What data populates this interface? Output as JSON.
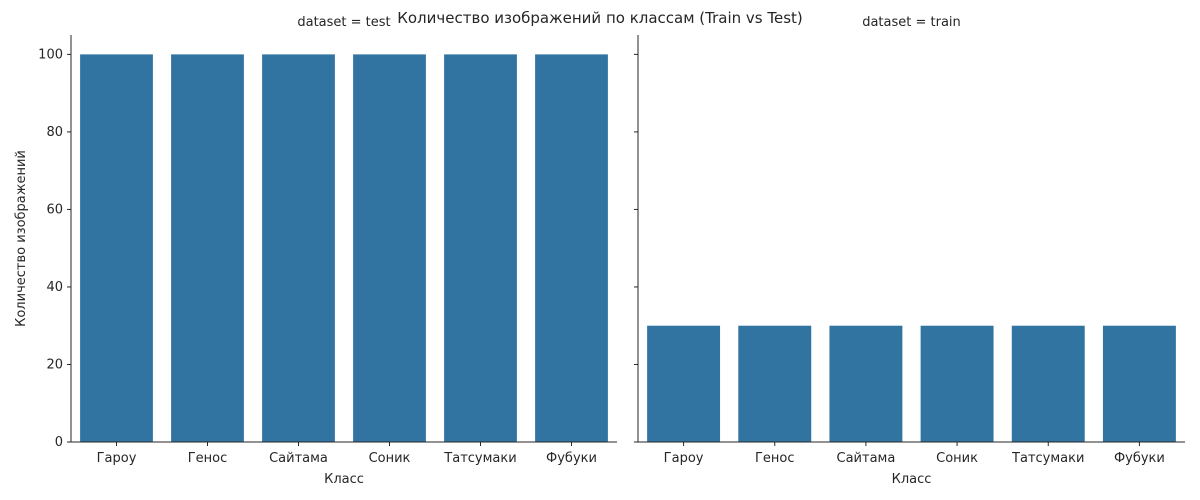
{
  "figure": {
    "suptitle": "Количество изображений по классам (Train vs Test)"
  },
  "chart_data": [
    {
      "type": "bar",
      "title": "dataset = test",
      "xlabel": "Класс",
      "ylabel": "Количество изображений",
      "categories": [
        "Гароу",
        "Генос",
        "Сайтама",
        "Соник",
        "Татсумаки",
        "Фубуки"
      ],
      "values": [
        100,
        100,
        100,
        100,
        100,
        100
      ],
      "ylim": [
        0,
        105
      ],
      "yticks": [
        0,
        20,
        40,
        60,
        80,
        100
      ],
      "grid": false,
      "bar_color": "#3274a1"
    },
    {
      "type": "bar",
      "title": "dataset = train",
      "xlabel": "Класс",
      "ylabel": "",
      "categories": [
        "Гароу",
        "Генос",
        "Сайтама",
        "Соник",
        "Татсумаки",
        "Фубуки"
      ],
      "values": [
        30,
        30,
        30,
        30,
        30,
        30
      ],
      "ylim": [
        0,
        105
      ],
      "yticks": [
        0,
        20,
        40,
        60,
        80,
        100
      ],
      "grid": false,
      "bar_color": "#3274a1"
    }
  ]
}
